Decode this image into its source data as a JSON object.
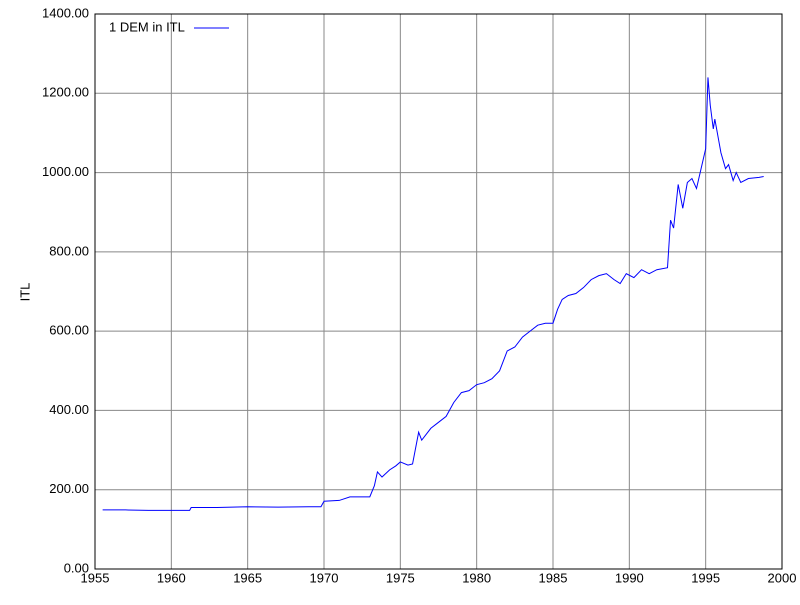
{
  "chart_data": {
    "type": "line",
    "ylabel": "ITL",
    "x": [
      1955.5,
      1957,
      1958.5,
      1960,
      1961.2,
      1961.3,
      1963,
      1965,
      1967,
      1969,
      1969.8,
      1970,
      1971,
      1971.7,
      1973,
      1973.3,
      1973.5,
      1973.8,
      1974.3,
      1974.7,
      1975,
      1975.5,
      1975.8,
      1976.2,
      1976.4,
      1977,
      1977.5,
      1978,
      1978.5,
      1979,
      1979.5,
      1980,
      1980.5,
      1981,
      1981.5,
      1982,
      1982.5,
      1983,
      1983.5,
      1984,
      1984.5,
      1985,
      1985.3,
      1985.6,
      1986,
      1986.5,
      1987,
      1987.5,
      1988,
      1988.5,
      1989,
      1989.4,
      1989.8,
      1990.3,
      1990.8,
      1991.3,
      1991.8,
      1992.5,
      1992.7,
      1992.9,
      1993.2,
      1993.5,
      1993.8,
      1994.1,
      1994.4,
      1994.7,
      1995,
      1995.15,
      1995.3,
      1995.5,
      1995.6,
      1996,
      1996.3,
      1996.5,
      1996.8,
      1997,
      1997.3,
      1997.8,
      1998.5,
      1998.8
    ],
    "series": [
      {
        "name": "1 DEM in ITL",
        "color": "#0000ff",
        "values": [
          149,
          149,
          148,
          148,
          148,
          155,
          155,
          157,
          156,
          157,
          157,
          171,
          173,
          182,
          182,
          210,
          245,
          232,
          250,
          260,
          270,
          262,
          265,
          345,
          325,
          355,
          370,
          385,
          420,
          445,
          450,
          465,
          470,
          480,
          500,
          550,
          560,
          585,
          600,
          615,
          620,
          620,
          655,
          680,
          690,
          695,
          710,
          730,
          740,
          745,
          730,
          720,
          745,
          735,
          755,
          745,
          755,
          760,
          880,
          860,
          970,
          910,
          975,
          985,
          960,
          1010,
          1060,
          1240,
          1170,
          1110,
          1135,
          1050,
          1010,
          1020,
          980,
          1000,
          975,
          985,
          988,
          990
        ]
      }
    ],
    "xlim": [
      1955,
      2000
    ],
    "xticks": [
      1955,
      1960,
      1965,
      1970,
      1975,
      1980,
      1985,
      1990,
      1995,
      2000
    ],
    "ylim": [
      0,
      1400
    ],
    "yticks": [
      {
        "value": 0,
        "label": "0.00"
      },
      {
        "value": 200,
        "label": "200.00"
      },
      {
        "value": 400,
        "label": "400.00"
      },
      {
        "value": 600,
        "label": "600.00"
      },
      {
        "value": 800,
        "label": "800.00"
      },
      {
        "value": 1000,
        "label": "1000.00"
      },
      {
        "value": 1200,
        "label": "1200.00"
      },
      {
        "value": 1400,
        "label": "1400.00"
      }
    ],
    "grid": true,
    "legend": "upper-left"
  }
}
